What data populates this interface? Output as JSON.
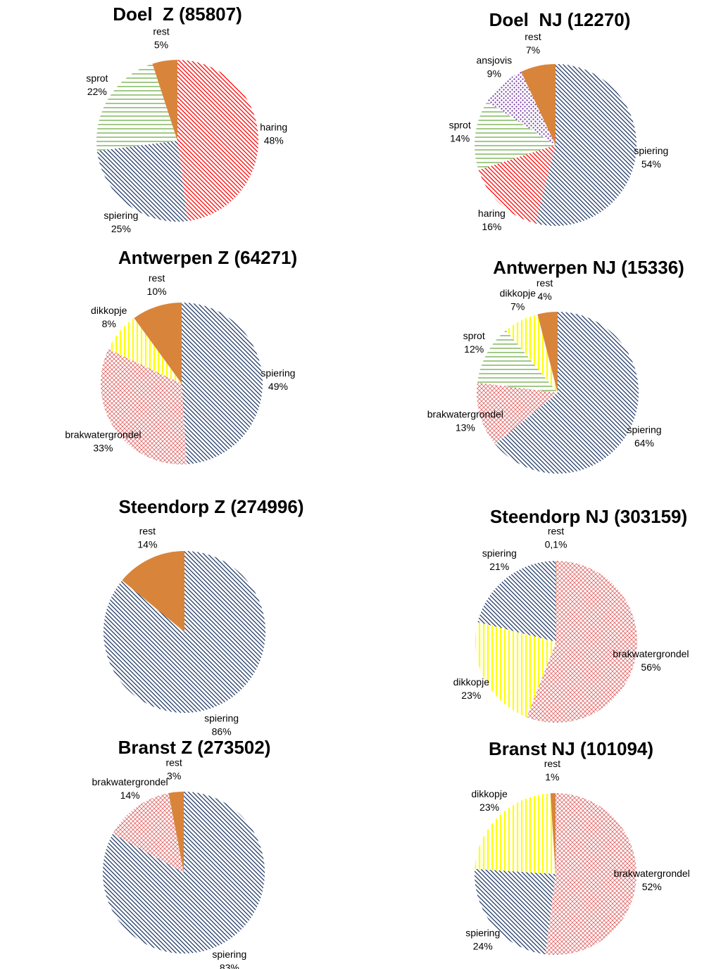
{
  "chart_data": [
    {
      "type": "pie",
      "title": "Doel  Z (85807)",
      "categories": [
        "haring",
        "spiering",
        "sprot",
        "rest"
      ],
      "values": [
        48,
        25,
        22,
        5
      ],
      "value_labels": [
        "48%",
        "25%",
        "22%",
        "5%"
      ],
      "colors": [
        "#ff0000",
        "#1f3864",
        "#70ad47",
        "#d9843b"
      ],
      "hatches": [
        "diagonal",
        "diagonal",
        "horizontal",
        "solid"
      ]
    },
    {
      "type": "pie",
      "title": "Doel  NJ (12270)",
      "categories": [
        "spiering",
        "haring",
        "sprot",
        "ansjovis",
        "rest"
      ],
      "values": [
        54,
        16,
        14,
        9,
        7
      ],
      "value_labels": [
        "54%",
        "16%",
        "14%",
        "9%",
        "7%"
      ],
      "colors": [
        "#1f3864",
        "#ff0000",
        "#70ad47",
        "#7030a0",
        "#d9843b"
      ],
      "hatches": [
        "diagonal",
        "diagonal",
        "horizontal",
        "dots",
        "solid"
      ]
    },
    {
      "type": "pie",
      "title": "Antwerpen Z (64271)",
      "categories": [
        "spiering",
        "brakwatergrondel",
        "dikkopje",
        "rest"
      ],
      "values": [
        49,
        33,
        8,
        10
      ],
      "value_labels": [
        "49%",
        "33%",
        "8%",
        "10%"
      ],
      "colors": [
        "#1f3864",
        "#e06666",
        "#ffff00",
        "#d9843b"
      ],
      "hatches": [
        "diagonal",
        "cross",
        "vertical",
        "solid"
      ]
    },
    {
      "type": "pie",
      "title": "Antwerpen NJ (15336)",
      "categories": [
        "spiering",
        "brakwatergrondel",
        "sprot",
        "dikkopje",
        "rest"
      ],
      "values": [
        64,
        13,
        12,
        7,
        4
      ],
      "value_labels": [
        "64%",
        "13%",
        "12%",
        "7%",
        "4%"
      ],
      "colors": [
        "#1f3864",
        "#e06666",
        "#70ad47",
        "#ffff00",
        "#d9843b"
      ],
      "hatches": [
        "diagonal",
        "cross",
        "horizontal",
        "vertical",
        "solid"
      ]
    },
    {
      "type": "pie",
      "title": "Steendorp Z (274996)",
      "categories": [
        "spiering",
        "rest"
      ],
      "values": [
        86,
        14
      ],
      "value_labels": [
        "86%",
        "14%"
      ],
      "colors": [
        "#1f3864",
        "#d9843b"
      ],
      "hatches": [
        "diagonal",
        "solid"
      ]
    },
    {
      "type": "pie",
      "title": "Steendorp NJ (303159)",
      "categories": [
        "brakwatergrondel",
        "dikkopje",
        "spiering",
        "rest"
      ],
      "values": [
        56,
        23,
        21,
        0.1
      ],
      "value_labels": [
        "56%",
        "23%",
        "21%",
        "0,1%"
      ],
      "colors": [
        "#e06666",
        "#ffff00",
        "#1f3864",
        "#d9843b"
      ],
      "hatches": [
        "cross",
        "vertical",
        "diagonal",
        "solid"
      ]
    },
    {
      "type": "pie",
      "title": "Branst Z (273502)",
      "categories": [
        "spiering",
        "brakwatergrondel",
        "rest"
      ],
      "values": [
        83,
        14,
        3
      ],
      "value_labels": [
        "83%",
        "14%",
        "3%"
      ],
      "colors": [
        "#1f3864",
        "#e06666",
        "#d9843b"
      ],
      "hatches": [
        "diagonal",
        "cross",
        "solid"
      ]
    },
    {
      "type": "pie",
      "title": "Branst NJ (101094)",
      "categories": [
        "brakwatergrondel",
        "spiering",
        "dikkopje",
        "rest"
      ],
      "values": [
        52,
        24,
        23,
        1
      ],
      "value_labels": [
        "52%",
        "24%",
        "23%",
        "1%"
      ],
      "colors": [
        "#e06666",
        "#1f3864",
        "#ffff00",
        "#d9843b"
      ],
      "hatches": [
        "cross",
        "diagonal",
        "vertical",
        "solid"
      ]
    }
  ]
}
